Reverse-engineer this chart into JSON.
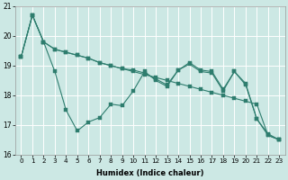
{
  "xlabel": "Humidex (Indice chaleur)",
  "bg_color": "#cce8e4",
  "grid_color": "#ffffff",
  "line_color": "#2e7d6e",
  "ylim": [
    16,
    21
  ],
  "xlim": [
    -0.5,
    23.5
  ],
  "yticks": [
    16,
    17,
    18,
    19,
    20,
    21
  ],
  "xticks": [
    0,
    1,
    2,
    3,
    4,
    5,
    6,
    7,
    8,
    9,
    10,
    11,
    12,
    13,
    14,
    15,
    16,
    17,
    18,
    19,
    20,
    21,
    22,
    23
  ],
  "line1_y": [
    19.3,
    20.7,
    19.8,
    19.55,
    19.45,
    19.35,
    19.25,
    19.1,
    19.0,
    18.9,
    18.8,
    18.7,
    18.6,
    18.5,
    18.4,
    18.3,
    18.2,
    18.1,
    18.0,
    17.9,
    17.8,
    17.7,
    16.65,
    16.5
  ],
  "line2_y": [
    19.3,
    20.7,
    19.8,
    19.55,
    19.45,
    19.35,
    19.25,
    19.1,
    19.0,
    18.9,
    18.85,
    18.75,
    18.55,
    18.35,
    18.85,
    19.1,
    18.85,
    18.8,
    18.2,
    18.8,
    18.4,
    17.2,
    16.7,
    16.5
  ],
  "line3_y": [
    19.3,
    20.7,
    19.8,
    18.8,
    17.5,
    16.8,
    17.1,
    17.25,
    17.7,
    17.65,
    18.15,
    18.8,
    18.5,
    18.3,
    18.85,
    19.05,
    18.8,
    18.75,
    18.15,
    18.8,
    18.35,
    17.2,
    16.65,
    16.5
  ],
  "xlabel_fontsize": 6.0,
  "tick_fontsize": 5.2
}
